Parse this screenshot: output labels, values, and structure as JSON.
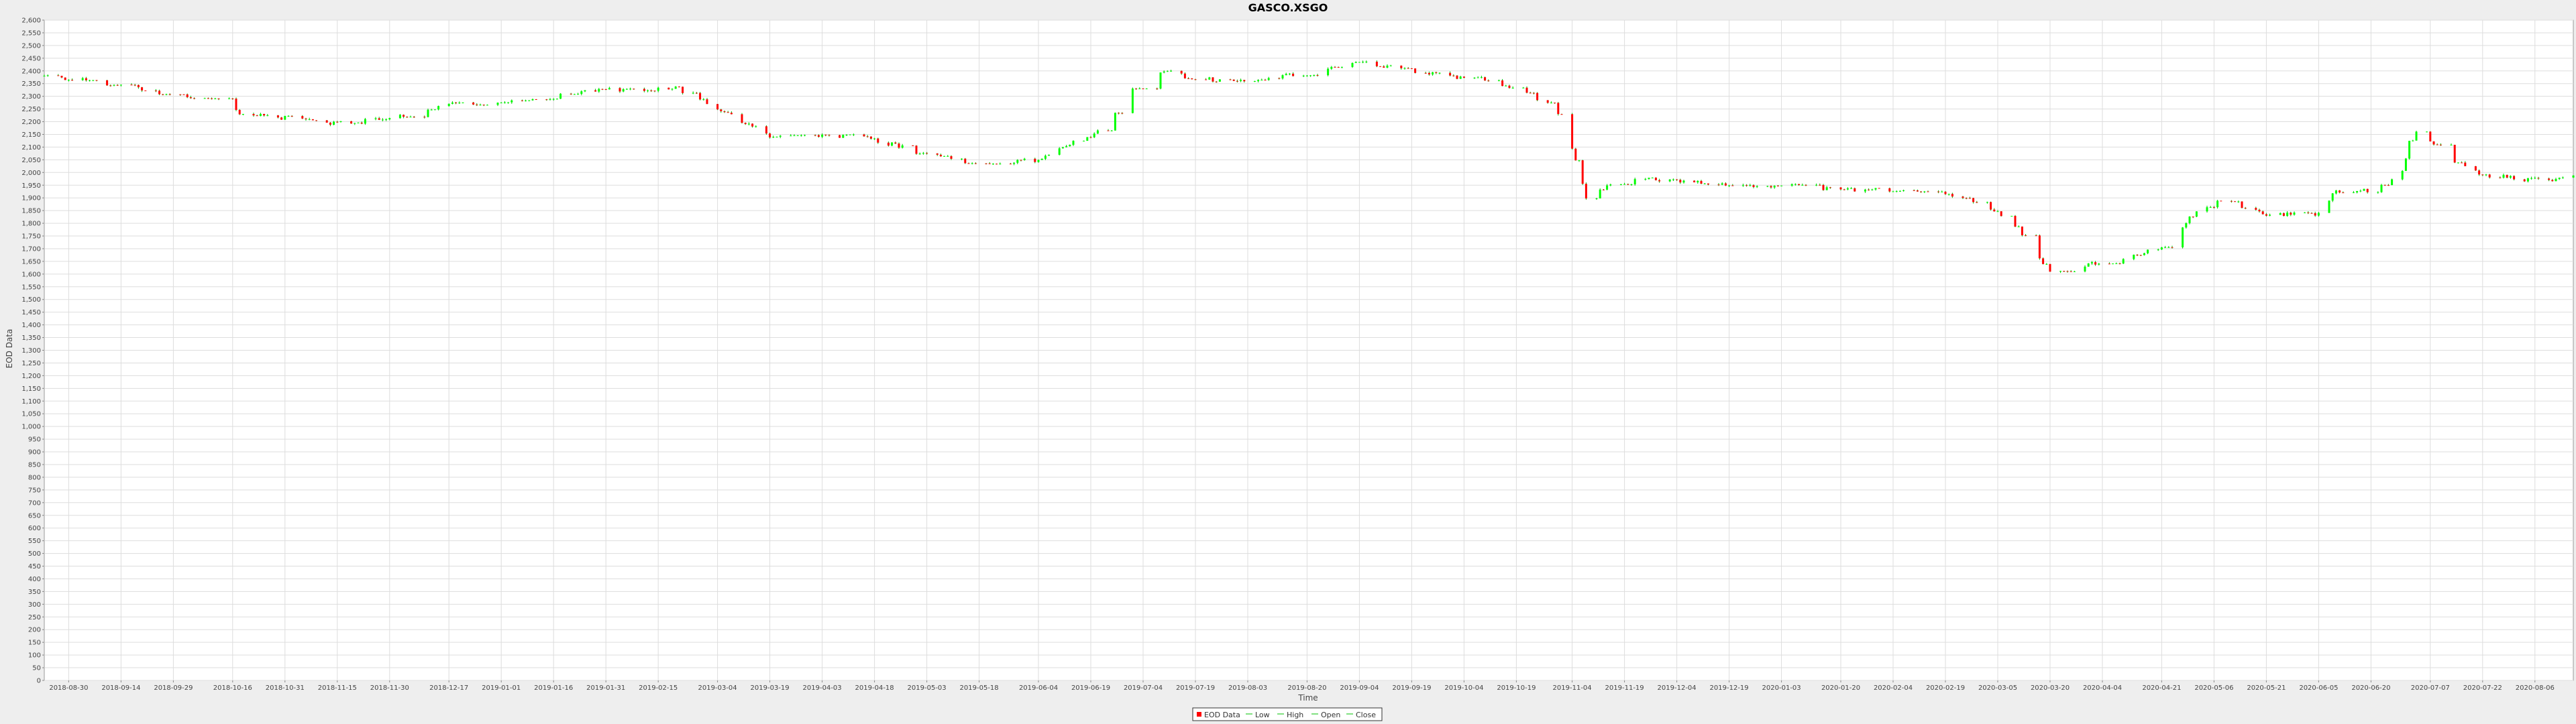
{
  "chart_data": {
    "type": "candlestick",
    "title": "GASCO.XSGO",
    "xlabel": "Time",
    "ylabel": "EOD Data",
    "ylim": [
      0,
      2600
    ],
    "ytick_step": 50,
    "grid": true,
    "legend_position": "bottom-center",
    "legend": [
      {
        "key": "eod",
        "label": "EOD Data"
      },
      {
        "key": "low",
        "label": "Low"
      },
      {
        "key": "high",
        "label": "High"
      },
      {
        "key": "open",
        "label": "Open"
      },
      {
        "key": "close",
        "label": "Close"
      }
    ],
    "x_tick_labels": [
      "2018-08-30",
      "2018-09-14",
      "2018-09-29",
      "2018-10-16",
      "2018-10-31",
      "2018-11-15",
      "2018-11-30",
      "2018-12-17",
      "2019-01-01",
      "2019-01-16",
      "2019-01-31",
      "2019-02-15",
      "2019-03-04",
      "2019-03-19",
      "2019-04-03",
      "2019-04-18",
      "2019-05-03",
      "2019-05-18",
      "2019-06-04",
      "2019-06-19",
      "2019-07-04",
      "2019-07-19",
      "2019-08-03",
      "2019-08-20",
      "2019-09-04",
      "2019-09-19",
      "2019-10-04",
      "2019-10-19",
      "2019-11-04",
      "2019-11-19",
      "2019-12-04",
      "2019-12-19",
      "2020-01-03",
      "2020-01-20",
      "2020-02-04",
      "2020-02-19",
      "2020-03-05",
      "2020-03-20",
      "2020-04-04",
      "2020-04-21",
      "2020-05-06",
      "2020-05-21",
      "2020-06-05",
      "2020-06-20",
      "2020-07-07",
      "2020-07-22",
      "2020-08-06"
    ],
    "x_range": [
      "2018-08-23",
      "2020-08-17"
    ],
    "colors": {
      "up": "#00ff00",
      "down": "#ff0000",
      "wick": "#00c000",
      "grid": "#dddddd",
      "plot_bg": "#ffffff",
      "page_bg": "#eeeeee"
    },
    "anchors": [
      [
        "2018-08-23",
        2380
      ],
      [
        "2018-09-05",
        2360
      ],
      [
        "2018-09-20",
        2330
      ],
      [
        "2018-10-05",
        2290
      ],
      [
        "2018-10-16",
        2240
      ],
      [
        "2018-10-31",
        2215
      ],
      [
        "2018-11-12",
        2195
      ],
      [
        "2018-11-22",
        2200
      ],
      [
        "2018-12-05",
        2225
      ],
      [
        "2018-12-17",
        2270
      ],
      [
        "2019-01-01",
        2270
      ],
      [
        "2019-01-16",
        2310
      ],
      [
        "2019-01-31",
        2325
      ],
      [
        "2019-02-20",
        2330
      ],
      [
        "2019-03-04",
        2250
      ],
      [
        "2019-03-19",
        2140
      ],
      [
        "2019-04-03",
        2150
      ],
      [
        "2019-04-18",
        2130
      ],
      [
        "2019-05-03",
        2070
      ],
      [
        "2019-05-18",
        2030
      ],
      [
        "2019-06-04",
        2050
      ],
      [
        "2019-06-19",
        2150
      ],
      [
        "2019-06-28",
        2250
      ],
      [
        "2019-07-04",
        2410
      ],
      [
        "2019-07-19",
        2370
      ],
      [
        "2019-08-03",
        2360
      ],
      [
        "2019-08-20",
        2390
      ],
      [
        "2019-09-04",
        2440
      ],
      [
        "2019-09-19",
        2400
      ],
      [
        "2019-10-04",
        2370
      ],
      [
        "2019-10-19",
        2330
      ],
      [
        "2019-10-30",
        2260
      ],
      [
        "2019-11-04",
        2100
      ],
      [
        "2019-11-08",
        1900
      ],
      [
        "2019-11-19",
        1980
      ],
      [
        "2019-12-04",
        1970
      ],
      [
        "2019-12-19",
        1950
      ],
      [
        "2020-01-03",
        1950
      ],
      [
        "2020-01-20",
        1930
      ],
      [
        "2020-02-04",
        1930
      ],
      [
        "2020-02-19",
        1920
      ],
      [
        "2020-03-05",
        1850
      ],
      [
        "2020-03-12",
        1760
      ],
      [
        "2020-03-20",
        1610
      ],
      [
        "2020-04-04",
        1650
      ],
      [
        "2020-04-21",
        1700
      ],
      [
        "2020-05-01",
        1850
      ],
      [
        "2020-05-08",
        1900
      ],
      [
        "2020-05-21",
        1830
      ],
      [
        "2020-06-05",
        1840
      ],
      [
        "2020-06-10",
        1930
      ],
      [
        "2020-06-20",
        1930
      ],
      [
        "2020-06-29",
        2000
      ],
      [
        "2020-07-02",
        2180
      ],
      [
        "2020-07-07",
        2120
      ],
      [
        "2020-07-13",
        2040
      ],
      [
        "2020-07-22",
        1990
      ],
      [
        "2020-08-06",
        1970
      ],
      [
        "2020-08-17",
        1980
      ]
    ]
  }
}
